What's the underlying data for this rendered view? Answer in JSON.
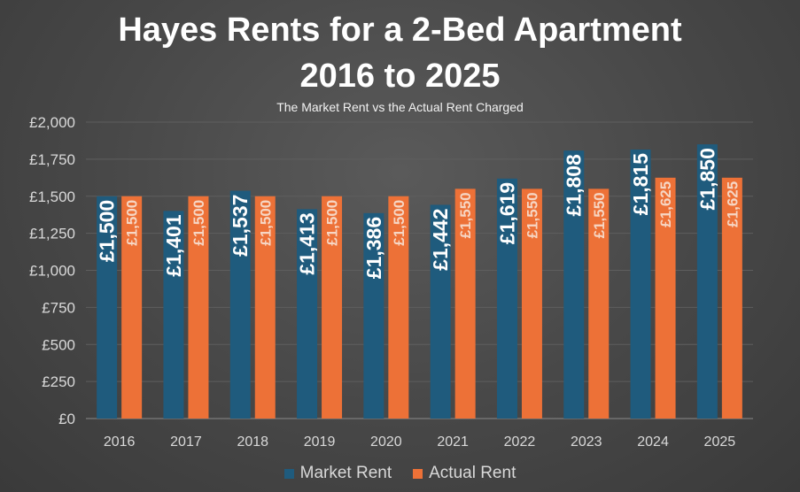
{
  "chart_data": {
    "type": "bar",
    "title_lines": [
      "Hayes Rents for a 2-Bed Apartment",
      "2016 to 2025"
    ],
    "subtitle": "The Market Rent vs the Actual Rent Charged",
    "categories": [
      "2016",
      "2017",
      "2018",
      "2019",
      "2020",
      "2021",
      "2022",
      "2023",
      "2024",
      "2025"
    ],
    "series": [
      {
        "name": "Market Rent",
        "color": "#1f5b7d",
        "values": [
          1500,
          1401,
          1537,
          1413,
          1386,
          1442,
          1619,
          1808,
          1815,
          1850
        ],
        "data_labels": [
          "£1,500",
          "£1,401",
          "£1,537",
          "£1,413",
          "£1,386",
          "£1,442",
          "£1,619",
          "£1,808",
          "£1,815",
          "£1,850"
        ]
      },
      {
        "name": "Actual Rent",
        "color": "#ed7137",
        "values": [
          1500,
          1500,
          1500,
          1500,
          1500,
          1550,
          1550,
          1550,
          1625,
          1625
        ],
        "data_labels": [
          "£1,500",
          "£1,500",
          "£1,500",
          "£1,500",
          "£1,500",
          "£1,550",
          "£1,550",
          "£1,550",
          "£1,625",
          "£1,625"
        ]
      }
    ],
    "ylim": [
      0,
      2000
    ],
    "yticks": [
      0,
      250,
      500,
      750,
      1000,
      1250,
      1500,
      1750,
      2000
    ],
    "ytick_labels": [
      "£0",
      "£250",
      "£500",
      "£750",
      "£1,000",
      "£1,250",
      "£1,500",
      "£1,750",
      "£2,000"
    ],
    "grid": true,
    "legend_position": "bottom"
  }
}
